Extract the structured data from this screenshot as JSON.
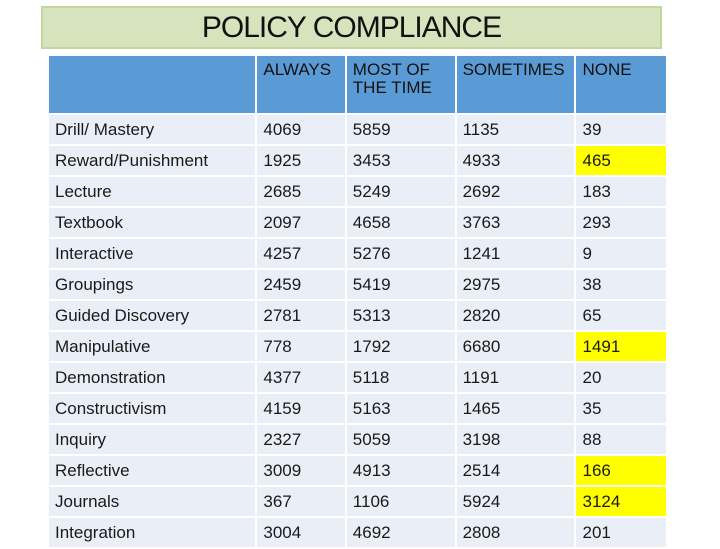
{
  "title": "POLICY COMPLIANCE",
  "columns": [
    "ALWAYS",
    "MOST OF THE TIME",
    "SOMETIMES",
    "NONE"
  ],
  "rows": [
    {
      "label": "Drill/ Mastery",
      "values": [
        "4069",
        "5859",
        "1135",
        "39"
      ],
      "red": [
        1
      ],
      "highlight": []
    },
    {
      "label": "Reward/Punishment",
      "values": [
        "1925",
        "3453",
        "4933",
        "465"
      ],
      "red": [
        2
      ],
      "highlight": [
        3
      ]
    },
    {
      "label": "Lecture",
      "values": [
        "2685",
        "5249",
        "2692",
        "183"
      ],
      "red": [
        1
      ],
      "highlight": []
    },
    {
      "label": "Textbook",
      "values": [
        "2097",
        "4658",
        "3763",
        "293"
      ],
      "red": [
        1
      ],
      "highlight": []
    },
    {
      "label": "Interactive",
      "values": [
        "4257",
        "5276",
        "1241",
        "9"
      ],
      "red": [
        1
      ],
      "highlight": []
    },
    {
      "label": "Groupings",
      "values": [
        "2459",
        "5419",
        "2975",
        "38"
      ],
      "red": [
        1
      ],
      "highlight": []
    },
    {
      "label": "Guided Discovery",
      "values": [
        "2781",
        "5313",
        "2820",
        "65"
      ],
      "red": [
        1
      ],
      "highlight": []
    },
    {
      "label": "Manipulative",
      "values": [
        "778",
        "1792",
        "6680",
        "1491"
      ],
      "red": [
        2
      ],
      "highlight": [
        3
      ]
    },
    {
      "label": "Demonstration",
      "values": [
        "4377",
        "5118",
        "1191",
        "20"
      ],
      "red": [
        1
      ],
      "highlight": []
    },
    {
      "label": "Constructivism",
      "values": [
        "4159",
        "5163",
        "1465",
        "35"
      ],
      "red": [
        1
      ],
      "highlight": []
    },
    {
      "label": "Inquiry",
      "values": [
        "2327",
        "5059",
        "3198",
        "88"
      ],
      "red": [
        1
      ],
      "highlight": []
    },
    {
      "label": "Reflective",
      "values": [
        "3009",
        "4913",
        "2514",
        "166"
      ],
      "red": [
        1
      ],
      "highlight": [
        3
      ]
    },
    {
      "label": "Journals",
      "values": [
        "367",
        "1106",
        "5924",
        "3124"
      ],
      "red": [
        2
      ],
      "highlight": [
        3
      ]
    },
    {
      "label": "Integration",
      "values": [
        "3004",
        "4692",
        "2808",
        "201"
      ],
      "red": [
        1
      ],
      "highlight": []
    }
  ],
  "colors": {
    "header": "#5b9bd5",
    "cell": "#e9eef7",
    "title_bg": "#d6e3bc",
    "red_text": "#e02020",
    "highlight": "#ffff00"
  }
}
